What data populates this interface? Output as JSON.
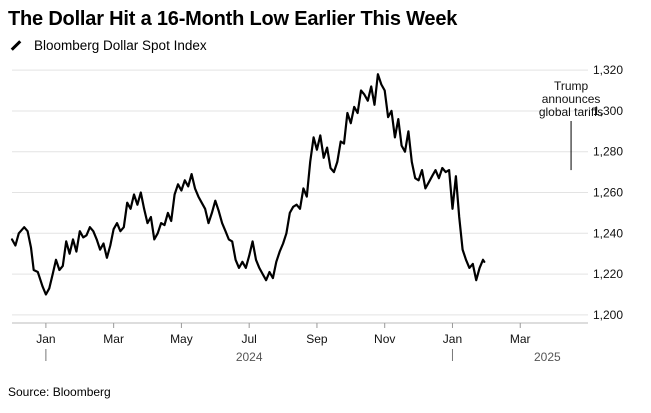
{
  "title": "The Dollar Hit a 16-Month Low Earlier This Week",
  "legend_label": "Bloomberg Dollar Spot Index",
  "source": "Source: Bloomberg",
  "chart_data": {
    "type": "line",
    "title": "The Dollar Hit a 16-Month Low Earlier This Week",
    "series": [
      {
        "name": "Bloomberg Dollar Spot Index",
        "color": "#000000",
        "points": [
          [
            0.0,
            1237
          ],
          [
            0.05,
            1234
          ],
          [
            0.1,
            1240
          ],
          [
            0.18,
            1243
          ],
          [
            0.23,
            1241
          ],
          [
            0.28,
            1233
          ],
          [
            0.32,
            1222
          ],
          [
            0.38,
            1221
          ],
          [
            0.45,
            1214
          ],
          [
            0.5,
            1210
          ],
          [
            0.55,
            1213
          ],
          [
            0.6,
            1220
          ],
          [
            0.65,
            1227
          ],
          [
            0.7,
            1222
          ],
          [
            0.75,
            1224
          ],
          [
            0.8,
            1236
          ],
          [
            0.85,
            1230
          ],
          [
            0.9,
            1237
          ],
          [
            0.95,
            1231
          ],
          [
            1.0,
            1241
          ],
          [
            1.05,
            1238
          ],
          [
            1.1,
            1239
          ],
          [
            1.15,
            1243
          ],
          [
            1.2,
            1241
          ],
          [
            1.25,
            1237
          ],
          [
            1.3,
            1232
          ],
          [
            1.35,
            1235
          ],
          [
            1.4,
            1228
          ],
          [
            1.45,
            1234
          ],
          [
            1.5,
            1242
          ],
          [
            1.55,
            1245
          ],
          [
            1.6,
            1241
          ],
          [
            1.65,
            1243
          ],
          [
            1.7,
            1255
          ],
          [
            1.75,
            1252
          ],
          [
            1.8,
            1259
          ],
          [
            1.85,
            1254
          ],
          [
            1.9,
            1260
          ],
          [
            1.95,
            1252
          ],
          [
            2.0,
            1245
          ],
          [
            2.05,
            1248
          ],
          [
            2.1,
            1237
          ],
          [
            2.15,
            1240
          ],
          [
            2.2,
            1245
          ],
          [
            2.25,
            1244
          ],
          [
            2.3,
            1250
          ],
          [
            2.35,
            1246
          ],
          [
            2.4,
            1259
          ],
          [
            2.45,
            1264
          ],
          [
            2.5,
            1261
          ],
          [
            2.55,
            1266
          ],
          [
            2.6,
            1263
          ],
          [
            2.65,
            1269
          ],
          [
            2.7,
            1262
          ],
          [
            2.75,
            1258
          ],
          [
            2.8,
            1255
          ],
          [
            2.85,
            1252
          ],
          [
            2.9,
            1245
          ],
          [
            2.95,
            1250
          ],
          [
            3.0,
            1256
          ],
          [
            3.05,
            1251
          ],
          [
            3.1,
            1245
          ],
          [
            3.15,
            1241
          ],
          [
            3.2,
            1237
          ],
          [
            3.25,
            1236
          ],
          [
            3.3,
            1227
          ],
          [
            3.35,
            1223
          ],
          [
            3.4,
            1226
          ],
          [
            3.45,
            1223
          ],
          [
            3.5,
            1229
          ],
          [
            3.55,
            1236
          ],
          [
            3.6,
            1227
          ],
          [
            3.65,
            1223
          ],
          [
            3.7,
            1220
          ],
          [
            3.75,
            1217
          ],
          [
            3.8,
            1221
          ],
          [
            3.85,
            1218
          ],
          [
            3.9,
            1226
          ],
          [
            3.95,
            1231
          ],
          [
            4.0,
            1235
          ],
          [
            4.05,
            1240
          ],
          [
            4.1,
            1250
          ],
          [
            4.15,
            1253
          ],
          [
            4.2,
            1254
          ],
          [
            4.25,
            1252
          ],
          [
            4.3,
            1262
          ],
          [
            4.35,
            1258
          ],
          [
            4.4,
            1275
          ],
          [
            4.45,
            1287
          ],
          [
            4.5,
            1281
          ],
          [
            4.55,
            1288
          ],
          [
            4.6,
            1277
          ],
          [
            4.65,
            1282
          ],
          [
            4.7,
            1272
          ],
          [
            4.75,
            1270
          ],
          [
            4.8,
            1275
          ],
          [
            4.85,
            1285
          ],
          [
            4.9,
            1284
          ],
          [
            4.95,
            1299
          ],
          [
            5.0,
            1294
          ],
          [
            5.05,
            1302
          ],
          [
            5.1,
            1299
          ],
          [
            5.15,
            1310
          ],
          [
            5.2,
            1308
          ],
          [
            5.25,
            1305
          ],
          [
            5.3,
            1312
          ],
          [
            5.35,
            1303
          ],
          [
            5.4,
            1318
          ],
          [
            5.45,
            1313
          ],
          [
            5.5,
            1310
          ],
          [
            5.55,
            1297
          ],
          [
            5.6,
            1300
          ],
          [
            5.65,
            1287
          ],
          [
            5.7,
            1296
          ],
          [
            5.75,
            1283
          ],
          [
            5.8,
            1280
          ],
          [
            5.85,
            1290
          ],
          [
            5.9,
            1275
          ],
          [
            5.95,
            1267
          ],
          [
            6.0,
            1266
          ],
          [
            6.05,
            1271
          ],
          [
            6.1,
            1262
          ],
          [
            6.15,
            1265
          ],
          [
            6.2,
            1268
          ],
          [
            6.25,
            1271
          ],
          [
            6.3,
            1267
          ],
          [
            6.35,
            1272
          ],
          [
            6.4,
            1270
          ],
          [
            6.45,
            1271
          ],
          [
            6.5,
            1252
          ],
          [
            6.55,
            1268
          ],
          [
            6.6,
            1248
          ],
          [
            6.65,
            1232
          ],
          [
            6.7,
            1227
          ],
          [
            6.75,
            1223
          ],
          [
            6.8,
            1225
          ],
          [
            6.85,
            1217
          ],
          [
            6.9,
            1223
          ],
          [
            6.95,
            1227
          ],
          [
            6.97,
            1226
          ]
        ]
      }
    ],
    "x_axis": {
      "ticks": [
        {
          "pos": 0.5,
          "label": "Jan"
        },
        {
          "pos": 1.5,
          "label": "Mar"
        },
        {
          "pos": 2.5,
          "label": "May"
        },
        {
          "pos": 3.5,
          "label": "Jul"
        },
        {
          "pos": 4.5,
          "label": "Sep"
        },
        {
          "pos": 5.5,
          "label": "Nov"
        },
        {
          "pos": 6.5,
          "label": "Jan"
        },
        {
          "pos": 7.5,
          "label": "Mar"
        }
      ],
      "year_labels": [
        {
          "pos": 3.5,
          "label": "2024"
        },
        {
          "pos": 7.9,
          "label": "2025"
        }
      ],
      "year_dividers": [
        0.5,
        6.5
      ]
    },
    "y_axis": {
      "ticks": [
        1200,
        1220,
        1240,
        1260,
        1280,
        1300,
        1320
      ],
      "tick_labels": [
        "1,200",
        "1,220",
        "1,240",
        "1,260",
        "1,280",
        "1,300",
        "1,320"
      ],
      "ylim": [
        1196,
        1324
      ]
    },
    "annotation": {
      "lines": [
        "Trump",
        "announces",
        "global tariffs"
      ],
      "x": 8.25,
      "y": 1270
    }
  }
}
